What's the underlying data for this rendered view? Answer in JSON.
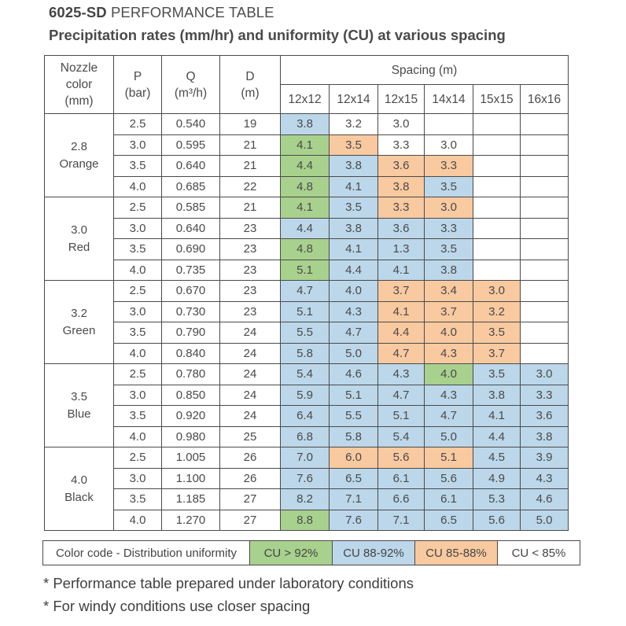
{
  "title": {
    "bold": "6025-SD",
    "rest": " PERFORMANCE TABLE"
  },
  "subtitle": "Precipitation rates (mm/hr) and uniformity (CU) at various spacing",
  "headers": {
    "nozzle": [
      "Nozzle",
      "color",
      "(mm)"
    ],
    "p": [
      "P",
      "(bar)"
    ],
    "q": [
      "Q",
      "(m³/h)"
    ],
    "d": [
      "D",
      "(m)"
    ],
    "spacing": "Spacing (m)",
    "spacings": [
      "12x12",
      "12x14",
      "12x15",
      "14x14",
      "15x15",
      "16x16"
    ]
  },
  "groups": [
    {
      "size": "2.8",
      "color": "Orange",
      "rows": [
        {
          "p": "2.5",
          "q": "0.540",
          "d": "19",
          "cells": [
            {
              "v": "3.8",
              "c": "b"
            },
            {
              "v": "3.2",
              "c": "w"
            },
            {
              "v": "3.0",
              "c": "w"
            },
            {
              "v": "",
              "c": "w"
            },
            {
              "v": "",
              "c": "w"
            },
            {
              "v": "",
              "c": "w"
            }
          ]
        },
        {
          "p": "3.0",
          "q": "0.595",
          "d": "21",
          "cells": [
            {
              "v": "4.1",
              "c": "g"
            },
            {
              "v": "3.5",
              "c": "o"
            },
            {
              "v": "3.3",
              "c": "w"
            },
            {
              "v": "3.0",
              "c": "w"
            },
            {
              "v": "",
              "c": "w"
            },
            {
              "v": "",
              "c": "w"
            }
          ]
        },
        {
          "p": "3.5",
          "q": "0.640",
          "d": "21",
          "cells": [
            {
              "v": "4.4",
              "c": "g"
            },
            {
              "v": "3.8",
              "c": "b"
            },
            {
              "v": "3.6",
              "c": "o"
            },
            {
              "v": "3.3",
              "c": "o"
            },
            {
              "v": "",
              "c": "w"
            },
            {
              "v": "",
              "c": "w"
            }
          ]
        },
        {
          "p": "4.0",
          "q": "0.685",
          "d": "22",
          "cells": [
            {
              "v": "4.8",
              "c": "g"
            },
            {
              "v": "4.1",
              "c": "b"
            },
            {
              "v": "3.8",
              "c": "o"
            },
            {
              "v": "3.5",
              "c": "b"
            },
            {
              "v": "",
              "c": "w"
            },
            {
              "v": "",
              "c": "w"
            }
          ]
        }
      ]
    },
    {
      "size": "3.0",
      "color": "Red",
      "rows": [
        {
          "p": "2.5",
          "q": "0.585",
          "d": "21",
          "cells": [
            {
              "v": "4.1",
              "c": "g"
            },
            {
              "v": "3.5",
              "c": "b"
            },
            {
              "v": "3.3",
              "c": "o"
            },
            {
              "v": "3.0",
              "c": "o"
            },
            {
              "v": "",
              "c": "w"
            },
            {
              "v": "",
              "c": "w"
            }
          ]
        },
        {
          "p": "3.0",
          "q": "0.640",
          "d": "23",
          "cells": [
            {
              "v": "4.4",
              "c": "b"
            },
            {
              "v": "3.8",
              "c": "b"
            },
            {
              "v": "3.6",
              "c": "b"
            },
            {
              "v": "3.3",
              "c": "b"
            },
            {
              "v": "",
              "c": "w"
            },
            {
              "v": "",
              "c": "w"
            }
          ]
        },
        {
          "p": "3.5",
          "q": "0.690",
          "d": "23",
          "cells": [
            {
              "v": "4.8",
              "c": "g"
            },
            {
              "v": "4.1",
              "c": "b"
            },
            {
              "v": "1.3",
              "c": "b"
            },
            {
              "v": "3.5",
              "c": "b"
            },
            {
              "v": "",
              "c": "w"
            },
            {
              "v": "",
              "c": "w"
            }
          ]
        },
        {
          "p": "4.0",
          "q": "0.735",
          "d": "23",
          "cells": [
            {
              "v": "5.1",
              "c": "g"
            },
            {
              "v": "4.4",
              "c": "b"
            },
            {
              "v": "4.1",
              "c": "b"
            },
            {
              "v": "3.8",
              "c": "b"
            },
            {
              "v": "",
              "c": "w"
            },
            {
              "v": "",
              "c": "w"
            }
          ]
        }
      ]
    },
    {
      "size": "3.2",
      "color": "Green",
      "rows": [
        {
          "p": "2.5",
          "q": "0.670",
          "d": "23",
          "cells": [
            {
              "v": "4.7",
              "c": "b"
            },
            {
              "v": "4.0",
              "c": "b"
            },
            {
              "v": "3.7",
              "c": "o"
            },
            {
              "v": "3.4",
              "c": "o"
            },
            {
              "v": "3.0",
              "c": "o"
            },
            {
              "v": "",
              "c": "w"
            }
          ]
        },
        {
          "p": "3.0",
          "q": "0.730",
          "d": "23",
          "cells": [
            {
              "v": "5.1",
              "c": "b"
            },
            {
              "v": "4.3",
              "c": "b"
            },
            {
              "v": "4.1",
              "c": "o"
            },
            {
              "v": "3.7",
              "c": "o"
            },
            {
              "v": "3.2",
              "c": "o"
            },
            {
              "v": "",
              "c": "w"
            }
          ]
        },
        {
          "p": "3.5",
          "q": "0.790",
          "d": "24",
          "cells": [
            {
              "v": "5.5",
              "c": "b"
            },
            {
              "v": "4.7",
              "c": "b"
            },
            {
              "v": "4.4",
              "c": "o"
            },
            {
              "v": "4.0",
              "c": "o"
            },
            {
              "v": "3.5",
              "c": "o"
            },
            {
              "v": "",
              "c": "w"
            }
          ]
        },
        {
          "p": "4.0",
          "q": "0.840",
          "d": "24",
          "cells": [
            {
              "v": "5.8",
              "c": "b"
            },
            {
              "v": "5.0",
              "c": "b"
            },
            {
              "v": "4.7",
              "c": "o"
            },
            {
              "v": "4.3",
              "c": "o"
            },
            {
              "v": "3.7",
              "c": "o"
            },
            {
              "v": "",
              "c": "w"
            }
          ]
        }
      ]
    },
    {
      "size": "3.5",
      "color": "Blue",
      "rows": [
        {
          "p": "2.5",
          "q": "0.780",
          "d": "24",
          "cells": [
            {
              "v": "5.4",
              "c": "b"
            },
            {
              "v": "4.6",
              "c": "b"
            },
            {
              "v": "4.3",
              "c": "b"
            },
            {
              "v": "4.0",
              "c": "g"
            },
            {
              "v": "3.5",
              "c": "b"
            },
            {
              "v": "3.0",
              "c": "b"
            }
          ]
        },
        {
          "p": "3.0",
          "q": "0.850",
          "d": "24",
          "cells": [
            {
              "v": "5.9",
              "c": "b"
            },
            {
              "v": "5.1",
              "c": "b"
            },
            {
              "v": "4.7",
              "c": "b"
            },
            {
              "v": "4.3",
              "c": "b"
            },
            {
              "v": "3.8",
              "c": "b"
            },
            {
              "v": "3.3",
              "c": "b"
            }
          ]
        },
        {
          "p": "3.5",
          "q": "0.920",
          "d": "24",
          "cells": [
            {
              "v": "6.4",
              "c": "b"
            },
            {
              "v": "5.5",
              "c": "b"
            },
            {
              "v": "5.1",
              "c": "b"
            },
            {
              "v": "4.7",
              "c": "b"
            },
            {
              "v": "4.1",
              "c": "b"
            },
            {
              "v": "3.6",
              "c": "b"
            }
          ]
        },
        {
          "p": "4.0",
          "q": "0.980",
          "d": "25",
          "cells": [
            {
              "v": "6.8",
              "c": "b"
            },
            {
              "v": "5.8",
              "c": "b"
            },
            {
              "v": "5.4",
              "c": "b"
            },
            {
              "v": "5.0",
              "c": "b"
            },
            {
              "v": "4.4",
              "c": "b"
            },
            {
              "v": "3.8",
              "c": "b"
            }
          ]
        }
      ]
    },
    {
      "size": "4.0",
      "color": "Black",
      "rows": [
        {
          "p": "2.5",
          "q": "1.005",
          "d": "26",
          "cells": [
            {
              "v": "7.0",
              "c": "b"
            },
            {
              "v": "6.0",
              "c": "o"
            },
            {
              "v": "5.6",
              "c": "o"
            },
            {
              "v": "5.1",
              "c": "o"
            },
            {
              "v": "4.5",
              "c": "b"
            },
            {
              "v": "3.9",
              "c": "b"
            }
          ]
        },
        {
          "p": "3.0",
          "q": "1.100",
          "d": "26",
          "cells": [
            {
              "v": "7.6",
              "c": "b"
            },
            {
              "v": "6.5",
              "c": "b"
            },
            {
              "v": "6.1",
              "c": "b"
            },
            {
              "v": "5.6",
              "c": "b"
            },
            {
              "v": "4.9",
              "c": "b"
            },
            {
              "v": "4.3",
              "c": "b"
            }
          ]
        },
        {
          "p": "3.5",
          "q": "1.185",
          "d": "27",
          "cells": [
            {
              "v": "8.2",
              "c": "b"
            },
            {
              "v": "7.1",
              "c": "b"
            },
            {
              "v": "6.6",
              "c": "b"
            },
            {
              "v": "6.1",
              "c": "b"
            },
            {
              "v": "5.3",
              "c": "b"
            },
            {
              "v": "4.6",
              "c": "b"
            }
          ]
        },
        {
          "p": "4.0",
          "q": "1.270",
          "d": "27",
          "cells": [
            {
              "v": "8.8",
              "c": "g"
            },
            {
              "v": "7.6",
              "c": "b"
            },
            {
              "v": "7.1",
              "c": "b"
            },
            {
              "v": "6.5",
              "c": "b"
            },
            {
              "v": "5.6",
              "c": "b"
            },
            {
              "v": "5.0",
              "c": "b"
            }
          ]
        }
      ]
    }
  ],
  "legend": {
    "label": "Color code - Distribution uniformity",
    "items": [
      {
        "text": "CU > 92%",
        "c": "g"
      },
      {
        "text": "CU 88-92%",
        "c": "b"
      },
      {
        "text": "CU 85-88%",
        "c": "o"
      },
      {
        "text": "CU < 85%",
        "c": "w"
      }
    ]
  },
  "notes": [
    "* Performance table prepared under laboratory conditions",
    "* For windy conditions use closer spacing"
  ],
  "colors": {
    "g": "#a9d18e",
    "b": "#bcd7ea",
    "o": "#f9c9a0",
    "w": "#ffffff"
  }
}
